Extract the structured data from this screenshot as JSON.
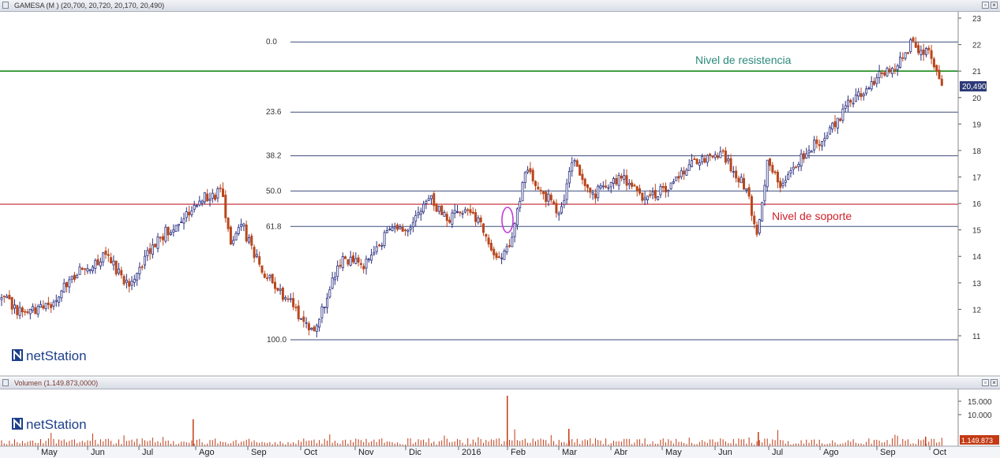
{
  "price_panel": {
    "title": "GAMESA (M ) (20,700, 20,720, 20,170, 20,490)",
    "last_price": "20,490",
    "logo": "netStation"
  },
  "volume_panel": {
    "title": "Volumen (1.149.873,0000)",
    "last_volume": "1.149.873",
    "logo": "netStation"
  },
  "window_buttons": {
    "toggle": "▫",
    "close": "×"
  },
  "colors": {
    "bull_candle": "#2a2f80",
    "bear_candle": "#b9461c",
    "resistance": "#1a8a1a",
    "support": "#c0232d",
    "fibonacci": "#3b4b7c",
    "highlight_ellipse": "#c23bd4",
    "volume_bar": "#c33a14",
    "annotation_resistance_text": "#2a8a7a",
    "annotation_support_text": "#d0202a"
  },
  "chart_data": {
    "type": "candlestick",
    "y_axis": {
      "range": [
        10,
        23.2
      ],
      "ticks": [
        11,
        12,
        13,
        14,
        15,
        16,
        17,
        18,
        19,
        20,
        21,
        22,
        23
      ]
    },
    "x_axis": {
      "labels": [
        "May",
        "Jun",
        "Jul",
        "Ago",
        "Sep",
        "Oct",
        "Nov",
        "Dic",
        "2016",
        "Feb",
        "Mar",
        "Abr",
        "May",
        "Jun",
        "Jul",
        "Ago",
        "Sep",
        "Oct"
      ]
    },
    "fibonacci_levels": [
      {
        "label": "0.0",
        "price": 22.1
      },
      {
        "label": "23.6",
        "price": 19.45
      },
      {
        "label": "38.2",
        "price": 17.8
      },
      {
        "label": "50.0",
        "price": 16.47
      },
      {
        "label": "61.8",
        "price": 15.13
      },
      {
        "label": "100.0",
        "price": 10.85
      }
    ],
    "resistance": {
      "label": "Nivel de resistencia",
      "price": 21.0
    },
    "support": {
      "label": "Nivel de soporte",
      "price": 15.97
    },
    "price_path": [
      [
        "2015-04-01",
        12.4
      ],
      [
        "2015-04-15",
        11.8
      ],
      [
        "2015-05-01",
        12.2
      ],
      [
        "2015-05-15",
        13.4
      ],
      [
        "2015-06-01",
        14.0
      ],
      [
        "2015-06-15",
        13.0
      ],
      [
        "2015-07-01",
        14.5
      ],
      [
        "2015-07-15",
        15.4
      ],
      [
        "2015-08-01",
        16.3
      ],
      [
        "2015-08-10",
        16.4
      ],
      [
        "2015-08-15",
        14.2
      ],
      [
        "2015-08-20",
        15.4
      ],
      [
        "2015-09-01",
        13.6
      ],
      [
        "2015-09-10",
        12.8
      ],
      [
        "2015-09-20",
        12.3
      ],
      [
        "2015-10-01",
        11.0
      ],
      [
        "2015-10-10",
        12.4
      ],
      [
        "2015-10-20",
        14.0
      ],
      [
        "2015-11-01",
        13.6
      ],
      [
        "2015-11-15",
        14.8
      ],
      [
        "2015-12-01",
        15.3
      ],
      [
        "2015-12-10",
        16.2
      ],
      [
        "2015-12-20",
        15.4
      ],
      [
        "2016-01-01",
        15.9
      ],
      [
        "2016-01-10",
        15.3
      ],
      [
        "2016-01-20",
        13.7
      ],
      [
        "2016-01-28",
        14.5
      ],
      [
        "2016-02-05",
        17.2
      ],
      [
        "2016-02-15",
        16.5
      ],
      [
        "2016-02-25",
        15.6
      ],
      [
        "2016-03-05",
        17.6
      ],
      [
        "2016-03-15",
        16.3
      ],
      [
        "2016-04-01",
        17.0
      ],
      [
        "2016-04-15",
        16.2
      ],
      [
        "2016-05-01",
        16.6
      ],
      [
        "2016-05-15",
        17.6
      ],
      [
        "2016-06-01",
        17.8
      ],
      [
        "2016-06-15",
        16.5
      ],
      [
        "2016-06-22",
        14.9
      ],
      [
        "2016-06-28",
        17.7
      ],
      [
        "2016-07-05",
        16.6
      ],
      [
        "2016-07-15",
        17.6
      ],
      [
        "2016-08-01",
        18.6
      ],
      [
        "2016-08-15",
        19.8
      ],
      [
        "2016-09-01",
        20.8
      ],
      [
        "2016-09-10",
        21.1
      ],
      [
        "2016-09-20",
        22.0
      ],
      [
        "2016-10-01",
        21.6
      ],
      [
        "2016-10-10",
        20.5
      ]
    ],
    "volume": {
      "y_ticks": [
        "15.000",
        "10.000"
      ],
      "last": 1149873
    }
  }
}
